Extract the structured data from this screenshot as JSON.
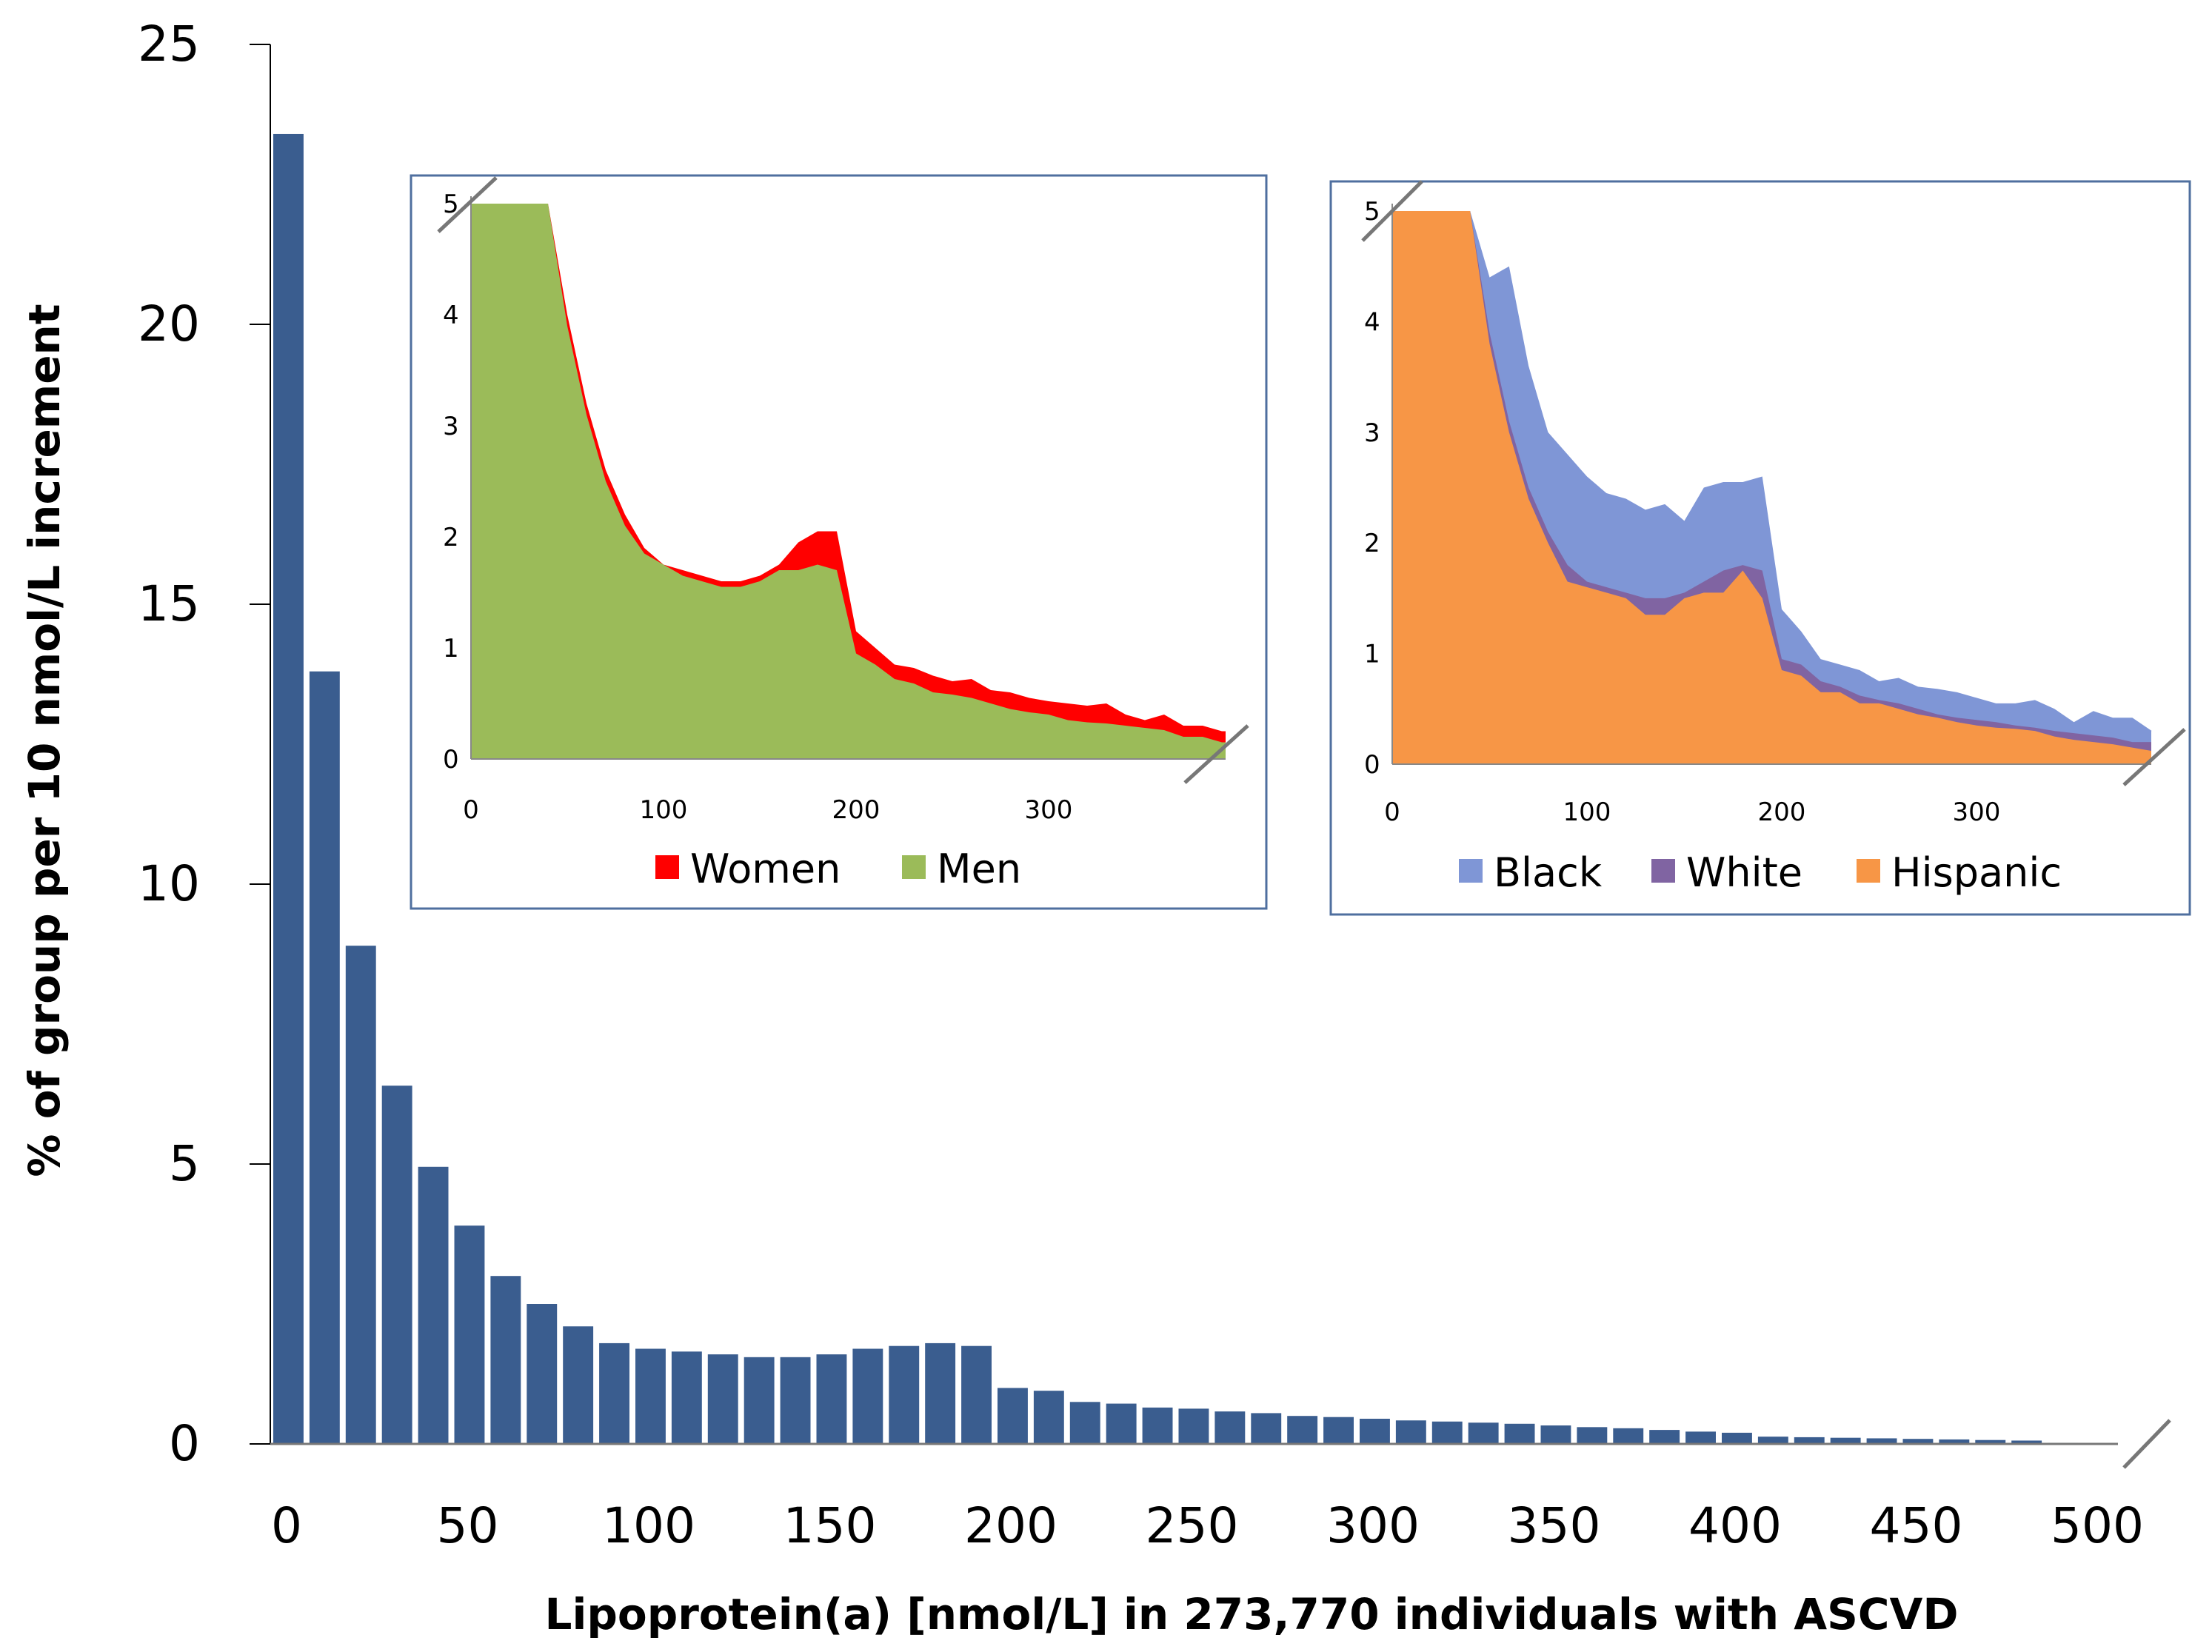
{
  "chart_data": [
    {
      "type": "bar",
      "xlabel": "Lipoprotein(a) [nmol/L] in 273,770 individuals with ASCVD",
      "ylabel": "% of group per 10 nmol/L increment",
      "ylim": [
        0,
        25
      ],
      "yticks": [
        "0",
        "5",
        "10",
        "15",
        "20",
        "25"
      ],
      "xticks": [
        "0",
        "50",
        "100",
        "150",
        "200",
        "250",
        "300",
        "350",
        "400",
        "450",
        "500"
      ],
      "x": [
        0,
        10,
        20,
        30,
        40,
        50,
        60,
        70,
        80,
        90,
        100,
        110,
        120,
        130,
        140,
        150,
        160,
        170,
        180,
        190,
        200,
        210,
        220,
        230,
        240,
        250,
        260,
        270,
        280,
        290,
        300,
        310,
        320,
        330,
        340,
        350,
        360,
        370,
        380,
        390,
        400,
        410,
        420,
        430,
        440,
        450,
        460,
        470,
        480,
        490
      ],
      "values": [
        23.4,
        13.8,
        8.9,
        6.4,
        4.95,
        3.9,
        3.0,
        2.5,
        2.1,
        1.8,
        1.7,
        1.65,
        1.6,
        1.55,
        1.55,
        1.6,
        1.7,
        1.75,
        1.8,
        1.75,
        1.0,
        0.95,
        0.75,
        0.72,
        0.65,
        0.63,
        0.58,
        0.55,
        0.5,
        0.48,
        0.45,
        0.42,
        0.4,
        0.38,
        0.36,
        0.33,
        0.3,
        0.28,
        0.25,
        0.22,
        0.2,
        0.13,
        0.12,
        0.11,
        0.1,
        0.09,
        0.08,
        0.07,
        0.06,
        0.02
      ],
      "color": "#3a5d8f",
      "axis_break": true
    },
    {
      "type": "area",
      "ylim": [
        0,
        5
      ],
      "yticks": [
        "0",
        "1",
        "2",
        "3",
        "4",
        "5"
      ],
      "xticks": [
        "0",
        "100",
        "200",
        "300"
      ],
      "x": [
        0,
        10,
        20,
        30,
        40,
        50,
        60,
        70,
        80,
        90,
        100,
        110,
        120,
        130,
        140,
        150,
        160,
        170,
        180,
        190,
        200,
        210,
        220,
        230,
        240,
        250,
        260,
        270,
        280,
        290,
        300,
        310,
        320,
        330,
        340,
        350,
        360,
        370,
        380,
        390
      ],
      "series": [
        {
          "name": "Women",
          "color": "#ff0000",
          "values": [
            5,
            5,
            5,
            5,
            5,
            4.0,
            3.2,
            2.6,
            2.2,
            1.9,
            1.75,
            1.7,
            1.65,
            1.6,
            1.6,
            1.65,
            1.75,
            1.95,
            2.05,
            2.05,
            1.15,
            1.0,
            0.85,
            0.82,
            0.75,
            0.7,
            0.72,
            0.62,
            0.6,
            0.55,
            0.52,
            0.5,
            0.48,
            0.5,
            0.4,
            0.35,
            0.4,
            0.3,
            0.3,
            0.25
          ]
        },
        {
          "name": "Men",
          "color": "#9bbb59",
          "values": [
            5,
            5,
            5,
            5,
            5,
            3.9,
            3.1,
            2.5,
            2.1,
            1.85,
            1.75,
            1.65,
            1.6,
            1.55,
            1.55,
            1.6,
            1.7,
            1.7,
            1.75,
            1.7,
            0.95,
            0.85,
            0.72,
            0.68,
            0.6,
            0.58,
            0.55,
            0.5,
            0.45,
            0.42,
            0.4,
            0.35,
            0.33,
            0.32,
            0.3,
            0.28,
            0.26,
            0.2,
            0.2,
            0.15
          ]
        }
      ]
    },
    {
      "type": "area",
      "ylim": [
        0,
        5
      ],
      "yticks": [
        "0",
        "1",
        "2",
        "3",
        "4",
        "5"
      ],
      "xticks": [
        "0",
        "100",
        "200",
        "300"
      ],
      "x": [
        0,
        10,
        20,
        30,
        40,
        50,
        60,
        70,
        80,
        90,
        100,
        110,
        120,
        130,
        140,
        150,
        160,
        170,
        180,
        190,
        200,
        210,
        220,
        230,
        240,
        250,
        260,
        270,
        280,
        290,
        300,
        310,
        320,
        330,
        340,
        350,
        360,
        370,
        380,
        390
      ],
      "series": [
        {
          "name": "Black",
          "color": "#7f96d6",
          "values": [
            5,
            5,
            5,
            5,
            5,
            4.4,
            4.5,
            3.6,
            3.0,
            2.8,
            2.6,
            2.45,
            2.4,
            2.3,
            2.35,
            2.2,
            2.5,
            2.55,
            2.55,
            2.6,
            1.4,
            1.2,
            0.95,
            0.9,
            0.85,
            0.75,
            0.78,
            0.7,
            0.68,
            0.65,
            0.6,
            0.55,
            0.55,
            0.58,
            0.5,
            0.38,
            0.48,
            0.42,
            0.42,
            0.3
          ]
        },
        {
          "name": "White",
          "color": "#8064a2",
          "values": [
            5,
            5,
            5,
            5,
            5,
            3.9,
            3.1,
            2.5,
            2.1,
            1.8,
            1.65,
            1.6,
            1.55,
            1.5,
            1.5,
            1.55,
            1.65,
            1.75,
            1.8,
            1.75,
            0.95,
            0.9,
            0.75,
            0.7,
            0.62,
            0.58,
            0.55,
            0.5,
            0.45,
            0.42,
            0.4,
            0.38,
            0.35,
            0.33,
            0.3,
            0.28,
            0.26,
            0.24,
            0.2,
            0.2
          ]
        },
        {
          "name": "Hispanic",
          "color": "#f79646",
          "values": [
            5,
            5,
            5,
            5,
            5,
            3.8,
            3.0,
            2.4,
            2.0,
            1.65,
            1.6,
            1.55,
            1.5,
            1.35,
            1.35,
            1.5,
            1.55,
            1.55,
            1.75,
            1.5,
            0.85,
            0.8,
            0.65,
            0.65,
            0.55,
            0.55,
            0.5,
            0.45,
            0.42,
            0.38,
            0.35,
            0.33,
            0.32,
            0.3,
            0.25,
            0.22,
            0.2,
            0.18,
            0.15,
            0.12
          ]
        }
      ]
    }
  ]
}
